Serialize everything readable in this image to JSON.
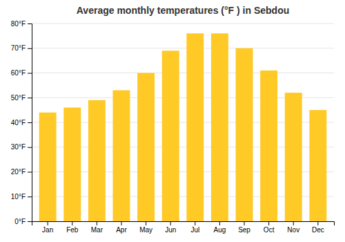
{
  "chart_data": {
    "type": "bar",
    "title": "Average monthly temperatures (°F ) in Sebdou",
    "categories": [
      "Jan",
      "Feb",
      "Mar",
      "Apr",
      "May",
      "Jun",
      "Jul",
      "Aug",
      "Sep",
      "Oct",
      "Nov",
      "Dec"
    ],
    "values": [
      44,
      46,
      49,
      53,
      60,
      69,
      76,
      76,
      70,
      61,
      52,
      45
    ],
    "color": "#FFC926",
    "ylim": [
      0,
      80
    ],
    "yticks": [
      {
        "value": 0,
        "label": "0°F"
      },
      {
        "value": 10,
        "label": "10°F"
      },
      {
        "value": 20,
        "label": "20°F"
      },
      {
        "value": 30,
        "label": "30°F"
      },
      {
        "value": 40,
        "label": "40°F"
      },
      {
        "value": 50,
        "label": "50°F"
      },
      {
        "value": 60,
        "label": "60°F"
      },
      {
        "value": 70,
        "label": "70°F"
      },
      {
        "value": 80,
        "label": "80°F"
      }
    ],
    "grid": true
  }
}
